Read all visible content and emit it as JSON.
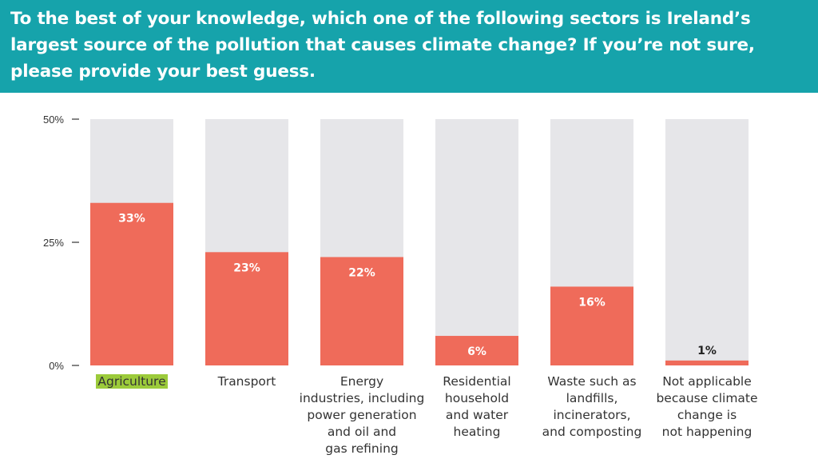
{
  "header": {
    "title": "To the best of your knowledge, which one of the following sectors is Ireland’s largest source of the pollution that causes climate change? If you’re not sure, please provide your best guess."
  },
  "colors": {
    "header_bg": "#16a3ab",
    "bar": "#ef6b5a",
    "track": "#e6e6e9",
    "highlight": "#9ccb3b"
  },
  "chart_data": {
    "type": "bar",
    "title": "",
    "xlabel": "",
    "ylabel": "",
    "ylim": [
      0,
      50
    ],
    "yticks": [
      "0%",
      "25%",
      "50%"
    ],
    "yticks_values": [
      0,
      25,
      50
    ],
    "grid": false,
    "categories": [
      "Agriculture",
      "Transport",
      "Energy\nindustries, including\npower generation\nand oil and\ngas refining",
      "Residential\nhousehold\nand water\nheating",
      "Waste such as\nlandfills,\nincinerators,\nand composting",
      "Not applicable\nbecause climate\nchange is\nnot happening"
    ],
    "values": [
      33,
      23,
      22,
      6,
      16,
      1
    ],
    "value_labels": [
      "33%",
      "23%",
      "22%",
      "6%",
      "16%",
      "1%"
    ],
    "highlighted_category": "Agriculture"
  }
}
